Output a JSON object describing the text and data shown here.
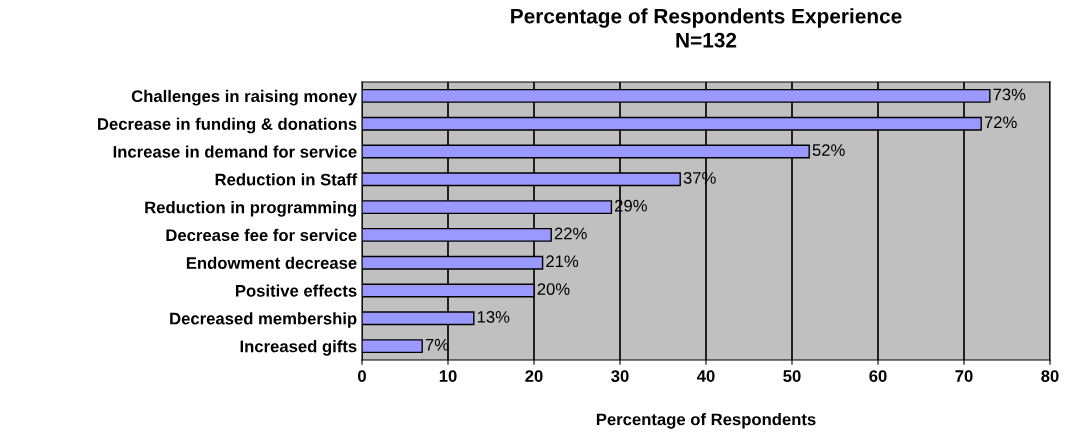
{
  "chart_data": {
    "type": "bar",
    "orientation": "horizontal",
    "title": "Percentage of Respondents Experience",
    "subtitle": "N=132",
    "xlabel": "Percentage of Respondents",
    "categories": [
      "Challenges in raising money",
      "Decrease in funding & donations",
      "Increase in demand for service",
      "Reduction in Staff",
      "Reduction in programming",
      "Decrease fee for service",
      "Endowment decrease",
      "Positive effects",
      "Decreased membership",
      "Increased gifts"
    ],
    "values": [
      73,
      72,
      52,
      37,
      29,
      22,
      21,
      20,
      13,
      7
    ],
    "value_labels": [
      "73%",
      "72%",
      "52%",
      "37%",
      "29%",
      "22%",
      "21%",
      "20%",
      "13%",
      "7%"
    ],
    "color": "#9999ff",
    "xlim": [
      0,
      80
    ],
    "xticks": [
      0,
      10,
      20,
      30,
      40,
      50,
      60,
      70,
      80
    ],
    "grid": "x",
    "legend": false
  }
}
